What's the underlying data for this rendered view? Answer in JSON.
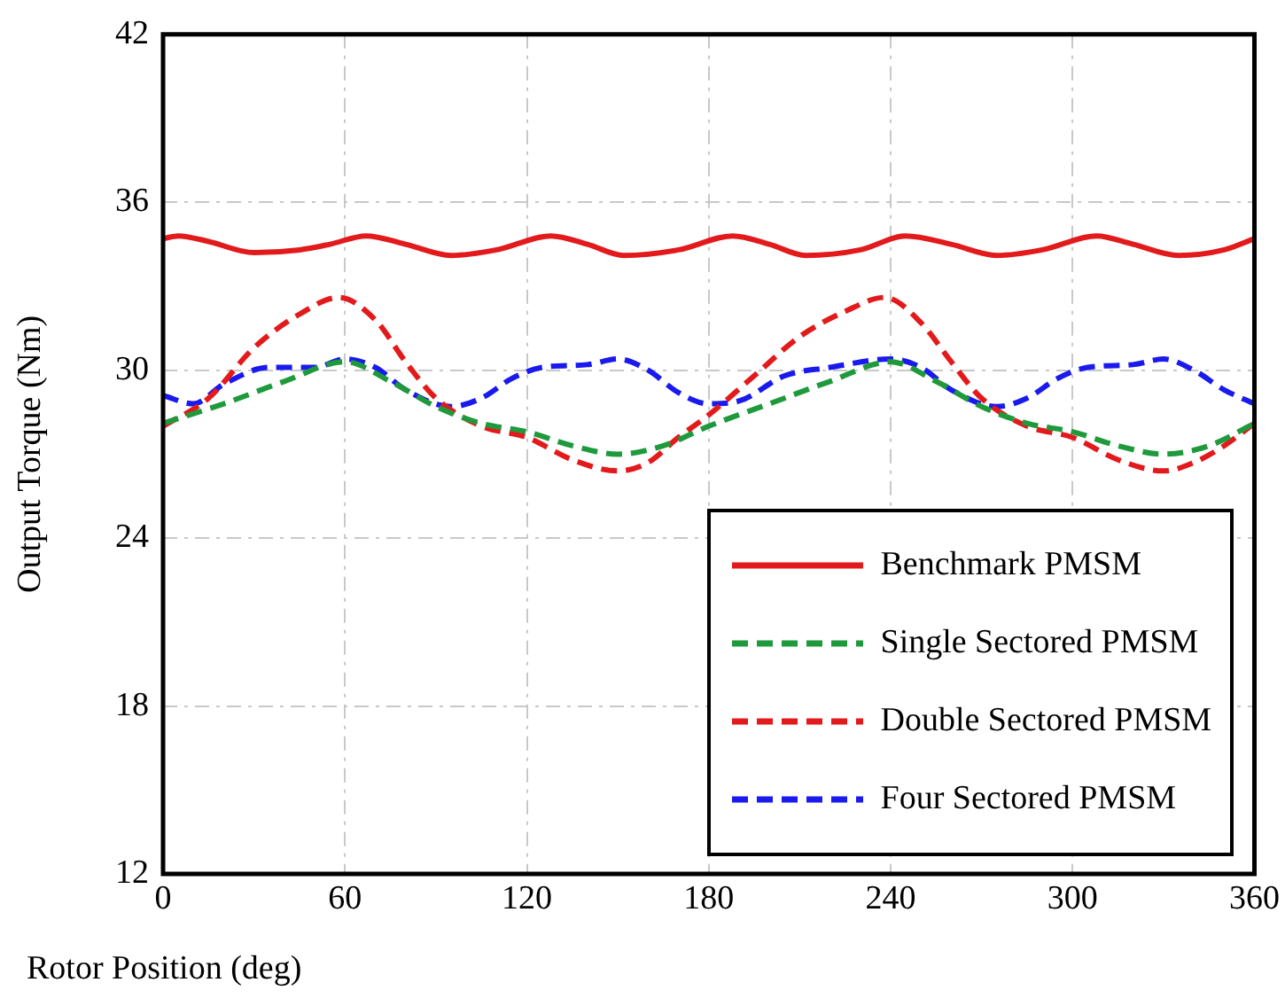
{
  "chart_data": {
    "type": "line",
    "xlabel": "Rotor Position (deg)",
    "ylabel": "Output Torque (Nm)",
    "xlim": [
      0,
      360
    ],
    "xticks": [
      0,
      60,
      120,
      180,
      240,
      300,
      360
    ],
    "ylim": [
      12,
      42
    ],
    "yticks": [
      12,
      18,
      24,
      30,
      36,
      42
    ],
    "grid": true,
    "legend": "bottom right",
    "marker": "none",
    "series": [
      {
        "name": "Benchmark PMSM",
        "color": "#e31a1c",
        "line_style": "solid",
        "x": [
          0,
          5,
          15,
          30,
          45,
          55,
          67,
          80,
          95,
          110,
          128,
          140,
          152,
          170,
          188,
          200,
          212,
          230,
          245,
          260,
          275,
          290,
          308,
          320,
          335,
          350,
          360
        ],
        "values": [
          34.7,
          34.8,
          34.6,
          34.2,
          34.3,
          34.5,
          34.8,
          34.5,
          34.1,
          34.3,
          34.8,
          34.5,
          34.1,
          34.3,
          34.8,
          34.5,
          34.1,
          34.3,
          34.8,
          34.5,
          34.1,
          34.3,
          34.8,
          34.5,
          34.1,
          34.3,
          34.7
        ]
      },
      {
        "name": "Single Sectored PMSM",
        "color": "#1e9a3c",
        "line_style": "dashed",
        "x": [
          0,
          20,
          40,
          60,
          75,
          90,
          105,
          120,
          135,
          150,
          165,
          180,
          200,
          220,
          240,
          255,
          270,
          285,
          300,
          315,
          330,
          345,
          360
        ],
        "values": [
          28.1,
          28.8,
          29.6,
          30.3,
          29.6,
          28.7,
          28.1,
          27.8,
          27.3,
          27.0,
          27.3,
          28.0,
          28.8,
          29.6,
          30.3,
          29.6,
          28.7,
          28.1,
          27.8,
          27.3,
          27.0,
          27.3,
          28.1
        ]
      },
      {
        "name": "Double Sectored PMSM",
        "color": "#e31a1c",
        "line_style": "dashed",
        "x": [
          0,
          15,
          30,
          45,
          58,
          70,
          80,
          90,
          105,
          120,
          135,
          150,
          160,
          170,
          180,
          195,
          210,
          225,
          238,
          250,
          260,
          270,
          285,
          300,
          315,
          330,
          340,
          350,
          360
        ],
        "values": [
          28.0,
          29.0,
          30.8,
          32.0,
          32.6,
          31.8,
          30.3,
          29.0,
          28.0,
          27.6,
          26.8,
          26.4,
          26.7,
          27.6,
          28.4,
          29.8,
          31.2,
          32.1,
          32.6,
          31.7,
          30.3,
          29.0,
          28.0,
          27.6,
          26.8,
          26.4,
          26.7,
          27.3,
          28.1
        ]
      },
      {
        "name": "Four Sectored PMSM",
        "color": "#1a1aee",
        "line_style": "dashed",
        "x": [
          0,
          10,
          20,
          35,
          50,
          60,
          70,
          80,
          95,
          105,
          115,
          125,
          140,
          150,
          160,
          170,
          180,
          190,
          205,
          220,
          240,
          250,
          260,
          275,
          285,
          295,
          305,
          320,
          330,
          340,
          350,
          360
        ],
        "values": [
          29.1,
          28.8,
          29.5,
          30.1,
          30.1,
          30.4,
          30.1,
          29.3,
          28.7,
          29.0,
          29.7,
          30.1,
          30.2,
          30.4,
          30.0,
          29.2,
          28.8,
          28.9,
          29.8,
          30.1,
          30.4,
          30.1,
          29.3,
          28.7,
          29.0,
          29.7,
          30.1,
          30.2,
          30.4,
          30.0,
          29.3,
          28.8
        ]
      }
    ]
  }
}
